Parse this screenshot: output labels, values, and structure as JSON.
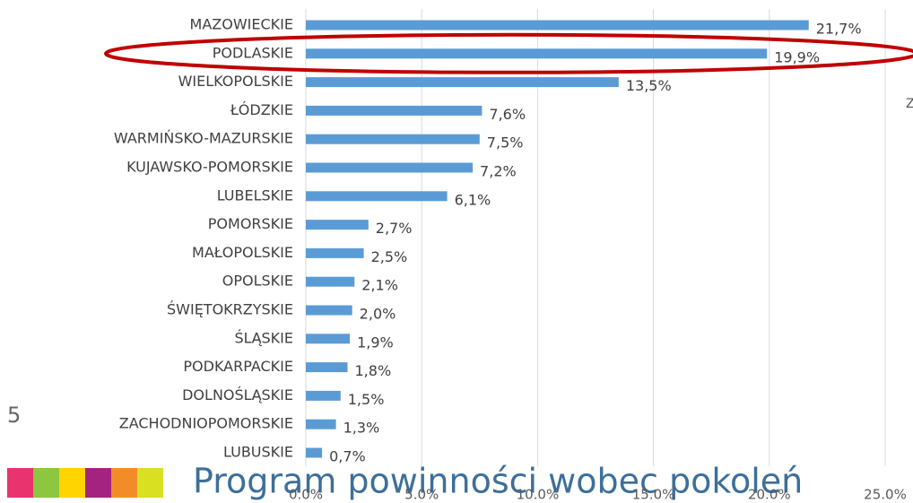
{
  "chart_data": {
    "type": "hbar",
    "categories": [
      "MAZOWIECKIE",
      "PODLASKIE",
      "WIELKOPOLSKIE",
      "ŁÓDZKIE",
      "WARMIŃSKO-MAZURSKIE",
      "KUJAWSKO-POMORSKIE",
      "LUBELSKIE",
      "POMORSKIE",
      "MAŁOPOLSKIE",
      "OPOLSKIE",
      "ŚWIĘTOKRZYSKIE",
      "ŚLĄSKIE",
      "PODKARPACKIE",
      "DOLNOŚLĄSKIE",
      "ZACHODNIOPOMORSKIE",
      "LUBUSKIE"
    ],
    "values": [
      21.7,
      19.9,
      13.5,
      7.6,
      7.5,
      7.2,
      6.1,
      2.7,
      2.5,
      2.1,
      2.0,
      1.9,
      1.8,
      1.5,
      1.3,
      0.7
    ],
    "value_labels": [
      "21,7%",
      "19,9%",
      "13,5%",
      "7,6%",
      "7,5%",
      "7,2%",
      "6,1%",
      "2,7%",
      "2,5%",
      "2,1%",
      "2,0%",
      "1,9%",
      "1,8%",
      "1,5%",
      "1,3%",
      "0,7%"
    ],
    "color": "#5b9bd5",
    "xlim": [
      0,
      25
    ],
    "xticks": [
      {
        "value": 0,
        "label": "0.0%"
      },
      {
        "value": 5,
        "label": "5.0%"
      },
      {
        "value": 10,
        "label": "10.0%"
      },
      {
        "value": 15,
        "label": "15.0%"
      },
      {
        "value": 20,
        "label": "20.0%"
      },
      {
        "value": 25,
        "label": "25.0%"
      }
    ],
    "grid": true,
    "highlight": "PODLASKIE"
  },
  "slide": {
    "number": "5",
    "footer": "Program powinności wobec pokoleń",
    "side_text": "Z"
  }
}
